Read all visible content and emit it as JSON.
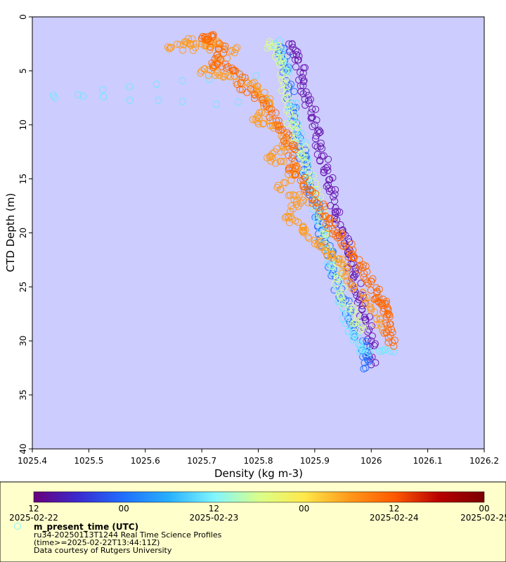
{
  "chart_data": {
    "type": "scatter",
    "title": "",
    "xlabel": "Density (kg m-3)",
    "ylabel": "CTD Depth (m)",
    "xlim": [
      1025.4,
      1026.2
    ],
    "ylim": [
      40,
      0
    ],
    "y_inverted": true,
    "x_ticks": [
      "1025.4",
      "1025.5",
      "1025.6",
      "1025.7",
      "1025.8",
      "1025.9",
      "1026",
      "1026.1",
      "1026.2"
    ],
    "y_ticks": [
      "0",
      "5",
      "10",
      "15",
      "20",
      "25",
      "30",
      "35",
      "40"
    ],
    "marker": "open-circle",
    "plot_background": "#ccccff",
    "legend_background": "#ffffcc",
    "color_by": "m_present_time (UTC)",
    "colormap": "rainbow (purple to dark red)",
    "series": [
      {
        "time_label": "2025-02-22T12",
        "color": "#6a1ab0",
        "points": [
          [
            1025.86,
            2.5
          ],
          [
            1025.87,
            4
          ],
          [
            1025.88,
            6
          ],
          [
            1025.89,
            8
          ],
          [
            1025.9,
            10
          ],
          [
            1025.91,
            12
          ],
          [
            1025.92,
            14
          ],
          [
            1025.93,
            16
          ],
          [
            1025.94,
            18
          ],
          [
            1025.95,
            20
          ],
          [
            1025.96,
            22
          ],
          [
            1025.97,
            24
          ],
          [
            1025.98,
            26
          ],
          [
            1025.99,
            28
          ],
          [
            1026.0,
            30
          ],
          [
            1026.0,
            32.2
          ]
        ]
      },
      {
        "time_label": "2025-02-23T00",
        "color": "#1f6fff",
        "points": [
          [
            1025.84,
            2.8
          ],
          [
            1025.85,
            5
          ],
          [
            1025.86,
            8
          ],
          [
            1025.87,
            11
          ],
          [
            1025.88,
            13
          ],
          [
            1025.89,
            15
          ],
          [
            1025.9,
            17
          ],
          [
            1025.91,
            19
          ],
          [
            1025.92,
            21
          ],
          [
            1025.93,
            23
          ],
          [
            1025.95,
            26
          ],
          [
            1025.97,
            28.5
          ],
          [
            1025.99,
            31
          ],
          [
            1025.99,
            32.5
          ]
        ]
      },
      {
        "time_label": "2025-02-23T12",
        "color": "#6fe8ff",
        "points": [
          [
            1025.44,
            7.5
          ],
          [
            1025.83,
            2.5
          ],
          [
            1025.85,
            5
          ],
          [
            1025.86,
            8
          ],
          [
            1025.87,
            11
          ],
          [
            1025.89,
            15
          ],
          [
            1025.91,
            19
          ],
          [
            1025.93,
            23
          ],
          [
            1025.95,
            27
          ],
          [
            1025.97,
            29.5
          ],
          [
            1025.98,
            31
          ],
          [
            1026.04,
            31
          ]
        ]
      },
      {
        "time_label": "2025-02-24T00",
        "color": "#d9ff8a",
        "points": [
          [
            1025.82,
            2.3
          ],
          [
            1025.84,
            4
          ],
          [
            1025.85,
            7
          ],
          [
            1025.86,
            10
          ],
          [
            1025.88,
            13
          ],
          [
            1025.9,
            16
          ],
          [
            1025.92,
            20
          ],
          [
            1025.94,
            24
          ],
          [
            1025.96,
            27
          ],
          [
            1025.98,
            29
          ]
        ]
      },
      {
        "time_label": "2025-02-24T12",
        "color": "#ff9a1a",
        "points": [
          [
            1025.64,
            2.8
          ],
          [
            1025.67,
            2.3
          ],
          [
            1025.7,
            2.5
          ],
          [
            1025.73,
            2.4
          ],
          [
            1025.76,
            3
          ],
          [
            1025.7,
            5
          ],
          [
            1025.74,
            5.5
          ],
          [
            1025.78,
            6
          ],
          [
            1025.8,
            7
          ],
          [
            1025.82,
            8
          ],
          [
            1025.79,
            9.5
          ],
          [
            1025.83,
            10
          ],
          [
            1025.85,
            12
          ],
          [
            1025.82,
            13
          ],
          [
            1025.87,
            14
          ],
          [
            1025.84,
            16
          ],
          [
            1025.88,
            17
          ],
          [
            1025.85,
            18.5
          ],
          [
            1025.88,
            19.5
          ],
          [
            1025.9,
            21
          ],
          [
            1025.93,
            22
          ],
          [
            1025.95,
            23
          ],
          [
            1025.97,
            25
          ],
          [
            1026.0,
            27
          ],
          [
            1026.02,
            29
          ]
        ]
      },
      {
        "time_label": "2025-02-25T00",
        "color": "#ff6a00",
        "points": [
          [
            1025.7,
            2
          ],
          [
            1025.72,
            1.8
          ],
          [
            1025.74,
            3
          ],
          [
            1025.72,
            4.5
          ],
          [
            1025.76,
            5
          ],
          [
            1025.78,
            7
          ],
          [
            1025.82,
            8.5
          ],
          [
            1025.84,
            10.5
          ],
          [
            1025.86,
            12
          ],
          [
            1025.86,
            14
          ],
          [
            1025.88,
            15.5
          ],
          [
            1025.9,
            17
          ],
          [
            1025.92,
            18.5
          ],
          [
            1025.94,
            20
          ],
          [
            1025.96,
            21.5
          ],
          [
            1025.98,
            23
          ],
          [
            1026.0,
            24.5
          ],
          [
            1026.01,
            26
          ],
          [
            1026.03,
            27.5
          ],
          [
            1026.03,
            29
          ],
          [
            1026.04,
            30.5
          ],
          [
            1026.02,
            26.5
          ]
        ]
      }
    ],
    "colorbar": {
      "label": "m_present_time (UTC)",
      "hour_ticks": [
        "12",
        "00",
        "12",
        "00",
        "12",
        "00"
      ],
      "date_ticks": [
        "2025-02-22",
        "2025-02-23",
        "2025-02-24",
        "2025-02-25"
      ],
      "stops": [
        "#6a007a",
        "#3a2bd0",
        "#1f6fff",
        "#28b0ff",
        "#7ff5ff",
        "#d9ff8a",
        "#ffe94a",
        "#ff9a1a",
        "#ff5a00",
        "#b80000",
        "#7a0000"
      ]
    }
  },
  "legend": {
    "label": "m_present_time (UTC)",
    "line1": "ru34-20250113T1244 Real Time Science Profiles",
    "line2": "(time>=2025-02-22T13:44:11Z)",
    "line3": "Data courtesy of Rutgers University"
  }
}
